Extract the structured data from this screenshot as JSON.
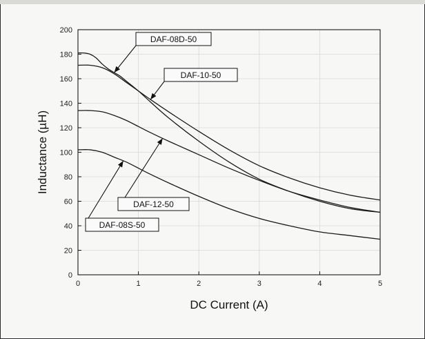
{
  "chart_data": {
    "type": "line",
    "xlabel": "DC Current (A)",
    "ylabel": "Inductance (µH)",
    "xlim": [
      0,
      5
    ],
    "ylim": [
      0,
      200
    ],
    "xticks": [
      0,
      1,
      2,
      3,
      4,
      5
    ],
    "yticks": [
      0,
      20,
      40,
      60,
      80,
      100,
      120,
      140,
      160,
      180,
      200
    ],
    "grid": true,
    "series": [
      {
        "name": "DAF-08D-50",
        "x": [
          0,
          0.1,
          0.2,
          0.3,
          0.4,
          0.5,
          0.6,
          0.7,
          0.8,
          1.0,
          1.2,
          1.5,
          2.0,
          2.5,
          3.0,
          3.5,
          4.0,
          4.5,
          5.0
        ],
        "y": [
          181,
          181,
          180,
          177,
          172,
          168,
          165,
          162,
          158,
          150,
          141,
          128,
          109,
          92,
          78,
          68,
          60,
          54,
          51
        ]
      },
      {
        "name": "DAF-10-50",
        "x": [
          0,
          0.2,
          0.4,
          0.6,
          0.8,
          1.0,
          1.2,
          1.5,
          2.0,
          2.5,
          3.0,
          3.5,
          4.0,
          4.5,
          5.0
        ],
        "y": [
          171,
          171,
          169,
          164,
          157,
          150,
          143,
          133,
          117,
          102,
          89,
          79,
          71,
          65,
          61
        ]
      },
      {
        "name": "DAF-12-50",
        "x": [
          0,
          0.2,
          0.4,
          0.6,
          0.8,
          1.0,
          1.2,
          1.5,
          2.0,
          2.5,
          3.0,
          3.5,
          4.0,
          4.5,
          5.0
        ],
        "y": [
          134,
          134,
          133,
          130,
          126,
          121,
          116,
          109,
          98,
          87,
          77,
          68,
          61,
          55,
          51
        ]
      },
      {
        "name": "DAF-08S-50",
        "x": [
          0,
          0.2,
          0.4,
          0.6,
          0.8,
          1.0,
          1.2,
          1.5,
          2.0,
          2.5,
          3.0,
          3.5,
          4.0,
          4.5,
          5.0
        ],
        "y": [
          102,
          102,
          100,
          96,
          92,
          87,
          82,
          75,
          64,
          54,
          46,
          40,
          35,
          32,
          29
        ]
      }
    ],
    "annotations": [
      {
        "text": "DAF-08D-50",
        "series": 0,
        "at_x": 0.6
      },
      {
        "text": "DAF-10-50",
        "series": 1,
        "at_x": 1.2
      },
      {
        "text": "DAF-12-50",
        "series": 2,
        "at_x": 1.4
      },
      {
        "text": "DAF-08S-50",
        "series": 3,
        "at_x": 0.75
      }
    ]
  }
}
